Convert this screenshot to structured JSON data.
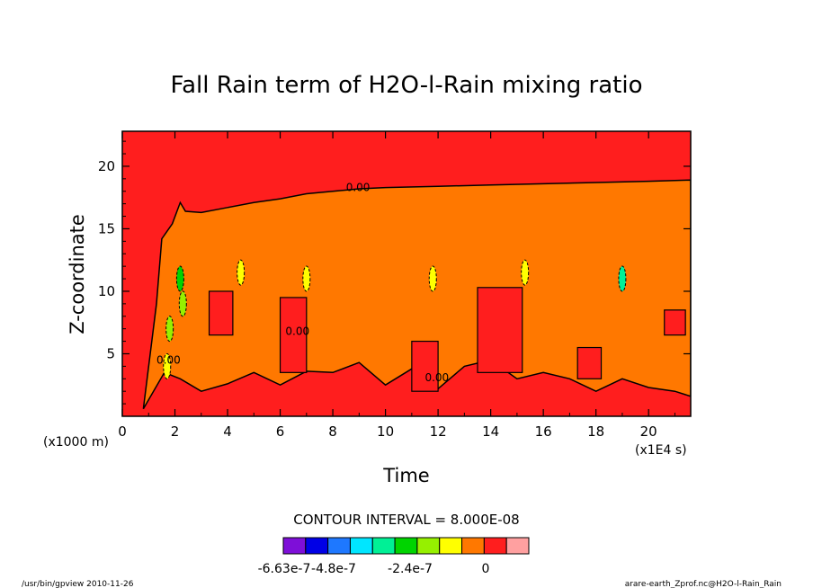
{
  "chart_data": {
    "type": "heatmap",
    "title": "Fall Rain term of H2O-l-Rain mixing ratio",
    "xlabel": "Time",
    "ylabel": "Z-coordinate",
    "x_unit_note": "(x1E4 s)",
    "y_unit_note": "(x1000 m)",
    "xlim": [
      0,
      21.6
    ],
    "ylim": [
      0,
      22.8
    ],
    "x_ticks": [
      0,
      2,
      4,
      6,
      8,
      10,
      12,
      14,
      16,
      18,
      20
    ],
    "y_ticks": [
      5,
      10,
      15,
      20
    ],
    "x_tick_labels": [
      "0",
      "2",
      "4",
      "6",
      "8",
      "10",
      "12",
      "14",
      "16",
      "18",
      "20"
    ],
    "y_tick_labels": [
      "5",
      "10",
      "15",
      "20"
    ],
    "contour_interval": "CONTOUR INTERVAL = 8.000E-08",
    "contour_label": "0.00",
    "colorbar": {
      "colors": [
        "#7e0fd8",
        "#0000e6",
        "#1e78ff",
        "#00e6ff",
        "#00f096",
        "#00d400",
        "#96f000",
        "#ffff00",
        "#ff7800",
        "#ff1e1e",
        "#ffa0a0"
      ],
      "labels": [
        "-6.63e-7",
        "-4.8e-7",
        "-2.4e-7",
        "0"
      ]
    },
    "regions": {
      "upper_fill": "#ff1e1e",
      "mid_fill": "#ff7800",
      "lower_fill": "#ff1e1e",
      "zero_contour_top_z": [
        [
          0.8,
          0.6
        ],
        [
          1.3,
          9.0
        ],
        [
          1.5,
          14.2
        ],
        [
          1.9,
          15.4
        ],
        [
          2.2,
          17.1
        ],
        [
          2.4,
          16.4
        ],
        [
          3.0,
          16.3
        ],
        [
          4.0,
          16.7
        ],
        [
          5.0,
          17.1
        ],
        [
          6.0,
          17.4
        ],
        [
          7.0,
          17.8
        ],
        [
          8.0,
          18.0
        ],
        [
          9.0,
          18.2
        ],
        [
          10.0,
          18.3
        ],
        [
          12.0,
          18.4
        ],
        [
          14.0,
          18.5
        ],
        [
          16.0,
          18.6
        ],
        [
          18.0,
          18.7
        ],
        [
          20.0,
          18.8
        ],
        [
          21.6,
          18.9
        ]
      ],
      "zero_contour_bottom_z": [
        [
          0.8,
          0.6
        ],
        [
          1.6,
          3.5
        ],
        [
          2.2,
          3.0
        ],
        [
          3.0,
          2.0
        ],
        [
          4.0,
          2.6
        ],
        [
          5.0,
          3.5
        ],
        [
          6.0,
          2.5
        ],
        [
          7.0,
          3.6
        ],
        [
          8.0,
          3.5
        ],
        [
          9.0,
          4.3
        ],
        [
          10.0,
          2.5
        ],
        [
          11.0,
          3.8
        ],
        [
          12.0,
          2.2
        ],
        [
          13.0,
          4.0
        ],
        [
          14.0,
          4.5
        ],
        [
          15.0,
          3.0
        ],
        [
          16.0,
          3.5
        ],
        [
          17.0,
          3.0
        ],
        [
          18.0,
          2.0
        ],
        [
          19.0,
          3.0
        ],
        [
          20.0,
          2.3
        ],
        [
          21.0,
          2.0
        ],
        [
          21.6,
          1.6
        ]
      ],
      "red_cells": [
        [
          3.3,
          6.5,
          4.2,
          10.0
        ],
        [
          6.0,
          3.5,
          7.0,
          9.5
        ],
        [
          11.0,
          2.0,
          12.0,
          6.0
        ],
        [
          13.5,
          3.5,
          15.2,
          10.3
        ],
        [
          17.3,
          3.0,
          18.2,
          5.5
        ],
        [
          20.6,
          6.5,
          21.4,
          8.5
        ]
      ],
      "convective_cells": [
        [
          1.7,
          4.0,
          "#ffff00"
        ],
        [
          1.8,
          7.0,
          "#96f000"
        ],
        [
          2.3,
          9.0,
          "#96f000"
        ],
        [
          2.2,
          11.0,
          "#00d400"
        ],
        [
          4.5,
          11.5,
          "#ffff00"
        ],
        [
          7.0,
          11.0,
          "#ffff00"
        ],
        [
          11.8,
          11.0,
          "#ffff00"
        ],
        [
          15.3,
          11.5,
          "#ffff00"
        ],
        [
          19.0,
          11.0,
          "#00f096"
        ]
      ]
    },
    "footer_left": "/usr/bin/gpview  2010-11-26",
    "footer_right": "arare-earth_Zprof.nc@H2O-l-Rain_Rain"
  }
}
